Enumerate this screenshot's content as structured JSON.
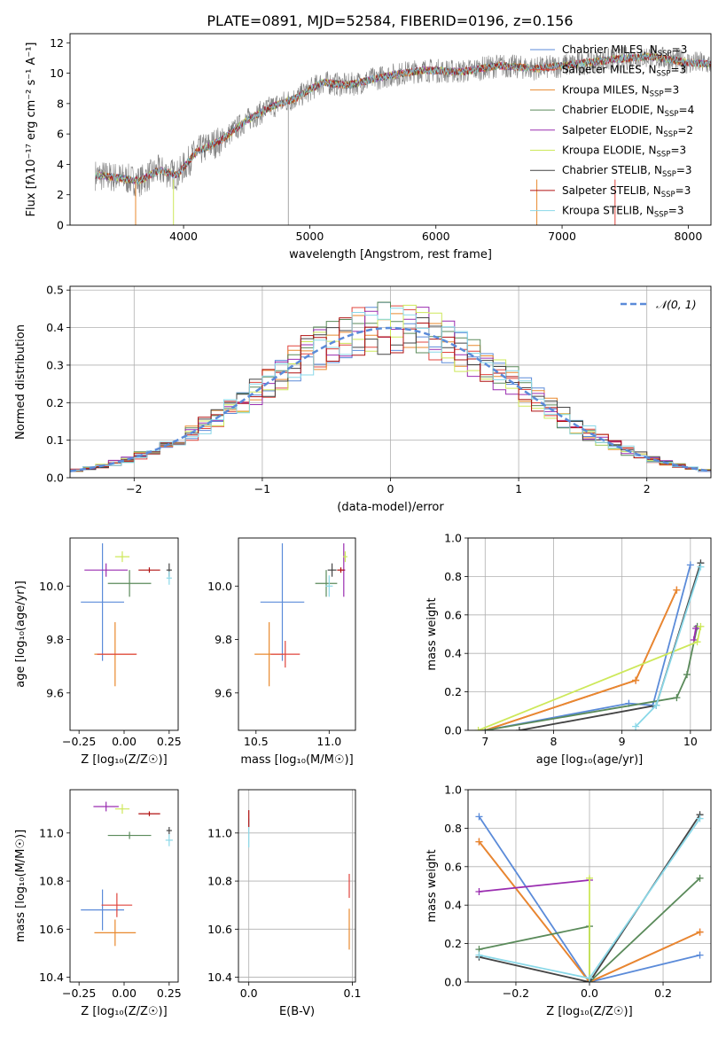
{
  "figure_title": "PLATE=0891, MJD=52584, FIBERID=0196, z=0.156",
  "colors": {
    "chabrier_miles": "#5b8bd9",
    "salpeter_miles": "#e0443c",
    "kroupa_miles": "#e8892e",
    "chabrier_elodie": "#5a8a5a",
    "salpeter_elodie": "#9a2db0",
    "kroupa_elodie": "#cde85a",
    "chabrier_stelib": "#444444",
    "salpeter_stelib": "#b01010",
    "kroupa_stelib": "#8ad8e8",
    "gauss": "#5b8bd9",
    "data": "#808080",
    "grid": "#b0b0b0"
  },
  "legend_spectrum": [
    {
      "label": "Chabrier MILES, N",
      "sub": "SSP",
      "suffix": "=3",
      "color_key": "chabrier_miles"
    },
    {
      "label": "Salpeter MILES, N",
      "sub": "SSP",
      "suffix": "=3",
      "color_key": "salpeter_miles"
    },
    {
      "label": "Kroupa MILES, N",
      "sub": "SSP",
      "suffix": "=3",
      "color_key": "kroupa_miles"
    },
    {
      "label": "Chabrier ELODIE, N",
      "sub": "SSP",
      "suffix": "=4",
      "color_key": "chabrier_elodie"
    },
    {
      "label": "Salpeter ELODIE, N",
      "sub": "SSP",
      "suffix": "=2",
      "color_key": "salpeter_elodie"
    },
    {
      "label": "Kroupa ELODIE, N",
      "sub": "SSP",
      "suffix": "=3",
      "color_key": "kroupa_elodie"
    },
    {
      "label": "Chabrier STELIB, N",
      "sub": "SSP",
      "suffix": "=3",
      "color_key": "chabrier_stelib"
    },
    {
      "label": "Salpeter STELIB, N",
      "sub": "SSP",
      "suffix": "=3",
      "color_key": "salpeter_stelib"
    },
    {
      "label": "Kroupa STELIB, N",
      "sub": "SSP",
      "suffix": "=3",
      "color_key": "kroupa_stelib"
    }
  ],
  "chart_data": [
    {
      "id": "spectrum",
      "type": "line",
      "title": "PLATE=0891, MJD=52584, FIBERID=0196, z=0.156",
      "xlabel": "wavelength [Angstrom, rest frame]",
      "ylabel": "Flux [fλ10⁻¹⁷ erg cm⁻² s⁻¹ A⁻¹]",
      "xlim": [
        3100,
        8180
      ],
      "ylim": [
        0,
        12.6
      ],
      "xticks": [
        4000,
        5000,
        6000,
        7000,
        8000
      ],
      "yticks": [
        0,
        2,
        4,
        6,
        8,
        10,
        12
      ],
      "grid": false,
      "legend": "right",
      "continuum": {
        "x": [
          3300,
          3500,
          3650,
          3800,
          3950,
          4100,
          4300,
          4500,
          4700,
          4900,
          5100,
          5300,
          5600,
          5900,
          6200,
          6500,
          6800,
          7100,
          7400,
          7700,
          8000,
          8180
        ],
        "y": [
          3.3,
          3.1,
          2.9,
          3.6,
          3.3,
          4.8,
          5.6,
          6.9,
          7.8,
          8.4,
          9.4,
          9.2,
          9.8,
          10.2,
          10.1,
          10.5,
          10.3,
          10.6,
          10.9,
          11.1,
          10.7,
          10.6
        ]
      }
    },
    {
      "id": "residuals",
      "type": "step",
      "xlabel": "(data-model)/error",
      "ylabel": "Normed distribution",
      "xlim": [
        -2.5,
        2.5
      ],
      "ylim": [
        0,
        0.51
      ],
      "xticks": [
        -2,
        -1,
        0,
        1,
        2
      ],
      "yticks": [
        0.0,
        0.1,
        0.2,
        0.3,
        0.4,
        0.5
      ],
      "grid": true,
      "legend": "top-right",
      "legend_label": "𝒩(0, 1)",
      "bin_width": 0.1
    },
    {
      "id": "age_vs_Z",
      "type": "errorbar",
      "xlabel": "Z [log₁₀(Z/Z☉)]",
      "ylabel": "age  [log₁₀(age/yr)]",
      "xlim": [
        -0.3,
        0.3
      ],
      "ylim": [
        9.46,
        10.18
      ],
      "xticks": [
        -0.25,
        0.0,
        0.25
      ],
      "yticks": [
        9.6,
        9.8,
        10.0
      ],
      "grid": false,
      "points": [
        {
          "c": "chabrier_miles",
          "x": -0.12,
          "y": 9.94,
          "xe": 0.24,
          "ye": 0.44
        },
        {
          "c": "kroupa_miles",
          "x": -0.05,
          "y": 9.745,
          "xe": 0.23,
          "ye": 0.24
        },
        {
          "c": "salpeter_miles",
          "x": -0.04,
          "y": 9.745,
          "xe": 0.22,
          "ye": 0.0
        },
        {
          "c": "chabrier_elodie",
          "x": 0.03,
          "y": 10.01,
          "xe": 0.24,
          "ye": 0.1
        },
        {
          "c": "salpeter_elodie",
          "x": -0.1,
          "y": 10.06,
          "xe": 0.24,
          "ye": 0.05
        },
        {
          "c": "kroupa_elodie",
          "x": -0.01,
          "y": 10.11,
          "xe": 0.08,
          "ye": 0.04
        },
        {
          "c": "chabrier_stelib",
          "x": 0.25,
          "y": 10.06,
          "xe": 0.03,
          "ye": 0.05
        },
        {
          "c": "salpeter_stelib",
          "x": 0.14,
          "y": 10.06,
          "xe": 0.12,
          "ye": 0.02
        },
        {
          "c": "kroupa_stelib",
          "x": 0.25,
          "y": 10.03,
          "xe": 0.03,
          "ye": 0.05
        }
      ]
    },
    {
      "id": "age_vs_mass",
      "type": "errorbar",
      "xlabel": "mass [log₁₀(M/M☉)]",
      "ylabel": "",
      "xlim": [
        10.38,
        11.18
      ],
      "ylim": [
        9.46,
        10.18
      ],
      "xticks": [
        10.5,
        11.0
      ],
      "yticks": [
        9.6,
        9.8,
        10.0
      ],
      "grid": false,
      "points": [
        {
          "c": "chabrier_miles",
          "x": 10.68,
          "y": 9.94,
          "xe": 0.3,
          "ye": 0.44
        },
        {
          "c": "kroupa_miles",
          "x": 10.59,
          "y": 9.745,
          "xe": 0.2,
          "ye": 0.24
        },
        {
          "c": "salpeter_miles",
          "x": 10.7,
          "y": 9.745,
          "xe": 0.2,
          "ye": 0.1
        },
        {
          "c": "chabrier_elodie",
          "x": 10.98,
          "y": 10.01,
          "xe": 0.15,
          "ye": 0.1
        },
        {
          "c": "salpeter_elodie",
          "x": 11.1,
          "y": 10.06,
          "xe": 0.02,
          "ye": 0.2
        },
        {
          "c": "kroupa_elodie",
          "x": 11.11,
          "y": 10.11,
          "xe": 0.03,
          "ye": 0.04
        },
        {
          "c": "chabrier_stelib",
          "x": 11.02,
          "y": 10.06,
          "xe": 0.06,
          "ye": 0.05
        },
        {
          "c": "salpeter_stelib",
          "x": 11.08,
          "y": 10.06,
          "xe": 0.05,
          "ye": 0.02
        },
        {
          "c": "kroupa_stelib",
          "x": 11.0,
          "y": 10.0,
          "xe": 0.05,
          "ye": 0.08
        }
      ]
    },
    {
      "id": "mass_weight_vs_age",
      "type": "line",
      "xlabel": "age  [log₁₀(age/yr)]",
      "ylabel": "mass weight",
      "xlim": [
        6.75,
        10.3
      ],
      "ylim": [
        0.0,
        1.0
      ],
      "xticks": [
        7,
        8,
        9,
        10
      ],
      "yticks": [
        0.0,
        0.2,
        0.4,
        0.6,
        0.8,
        1.0
      ],
      "grid": true,
      "series": [
        {
          "c": "chabrier_miles",
          "x": [
            7.0,
            9.1,
            9.45,
            10.0
          ],
          "y": [
            0.0,
            0.14,
            0.13,
            0.86
          ]
        },
        {
          "c": "salpeter_miles",
          "x": [
            7.0,
            9.2,
            9.8
          ],
          "y": [
            0.0,
            0.26,
            0.73
          ]
        },
        {
          "c": "kroupa_miles",
          "x": [
            7.0,
            9.2,
            9.8
          ],
          "y": [
            0.0,
            0.26,
            0.73
          ]
        },
        {
          "c": "chabrier_elodie",
          "x": [
            7.0,
            9.8,
            9.95,
            10.1
          ],
          "y": [
            0.0,
            0.17,
            0.29,
            0.54
          ]
        },
        {
          "c": "salpeter_elodie",
          "x": [
            10.05,
            10.08
          ],
          "y": [
            0.47,
            0.53
          ]
        },
        {
          "c": "kroupa_elodie",
          "x": [
            6.9,
            10.1,
            10.15
          ],
          "y": [
            0.0,
            0.46,
            0.54
          ]
        },
        {
          "c": "chabrier_stelib",
          "x": [
            7.5,
            9.5,
            10.15
          ],
          "y": [
            0.0,
            0.13,
            0.87
          ]
        },
        {
          "c": "kroupa_stelib",
          "x": [
            9.2,
            9.5,
            10.15
          ],
          "y": [
            0.02,
            0.13,
            0.85
          ]
        }
      ]
    },
    {
      "id": "mass_vs_Z",
      "type": "errorbar",
      "xlabel": "Z [log₁₀(Z/Z☉)]",
      "ylabel": "mass [log₁₀(M/M☉)]",
      "xlim": [
        -0.3,
        0.3
      ],
      "ylim": [
        10.38,
        11.18
      ],
      "xticks": [
        -0.25,
        0.0,
        0.25
      ],
      "yticks": [
        10.4,
        10.6,
        10.8,
        11.0
      ],
      "grid": false,
      "points": [
        {
          "c": "chabrier_miles",
          "x": -0.12,
          "y": 10.68,
          "xe": 0.24,
          "ye": 0.17
        },
        {
          "c": "kroupa_miles",
          "x": -0.05,
          "y": 10.585,
          "xe": 0.23,
          "ye": 0.11
        },
        {
          "c": "salpeter_miles",
          "x": -0.04,
          "y": 10.7,
          "xe": 0.17,
          "ye": 0.1
        },
        {
          "c": "chabrier_elodie",
          "x": 0.03,
          "y": 10.99,
          "xe": 0.24,
          "ye": 0.03
        },
        {
          "c": "salpeter_elodie",
          "x": -0.1,
          "y": 11.11,
          "xe": 0.14,
          "ye": 0.04
        },
        {
          "c": "kroupa_elodie",
          "x": -0.01,
          "y": 11.1,
          "xe": 0.08,
          "ye": 0.04
        },
        {
          "c": "chabrier_stelib",
          "x": 0.25,
          "y": 11.01,
          "xe": 0.03,
          "ye": 0.03
        },
        {
          "c": "salpeter_stelib",
          "x": 0.14,
          "y": 11.08,
          "xe": 0.12,
          "ye": 0.02
        },
        {
          "c": "kroupa_stelib",
          "x": 0.25,
          "y": 10.97,
          "xe": 0.04,
          "ye": 0.05
        }
      ]
    },
    {
      "id": "mass_vs_ebv",
      "type": "errorbar",
      "xlabel": "E(B-V)",
      "ylabel": "",
      "xlim": [
        -0.01,
        0.103
      ],
      "ylim": [
        10.38,
        11.18
      ],
      "xticks": [
        0.0,
        0.1
      ],
      "yticks": [
        10.4,
        10.6,
        10.8,
        11.0
      ],
      "grid": true,
      "points": [
        {
          "c": "kroupa_stelib",
          "x": 0.0,
          "y": 11.0,
          "xe": 0.0,
          "ye": 0.12
        },
        {
          "c": "salpeter_stelib",
          "x": 0.0,
          "y": 11.06,
          "xe": 0.0,
          "ye": 0.07
        },
        {
          "c": "kroupa_miles",
          "x": 0.097,
          "y": 10.6,
          "xe": 0.0,
          "ye": 0.17
        },
        {
          "c": "salpeter_miles",
          "x": 0.097,
          "y": 10.78,
          "xe": 0.0,
          "ye": 0.1
        }
      ]
    },
    {
      "id": "mass_weight_vs_Z",
      "type": "line",
      "xlabel": "Z [log₁₀(Z/Z☉)]",
      "ylabel": "mass weight",
      "xlim": [
        -0.33,
        0.33
      ],
      "ylim": [
        0.0,
        1.0
      ],
      "xticks": [
        -0.2,
        0.0,
        0.2
      ],
      "yticks": [
        0.0,
        0.2,
        0.4,
        0.6,
        0.8,
        1.0
      ],
      "grid": true,
      "series": [
        {
          "c": "chabrier_miles",
          "x": [
            -0.3,
            0.0,
            0.3
          ],
          "y": [
            0.86,
            0.0,
            0.14
          ]
        },
        {
          "c": "salpeter_miles",
          "x": [
            -0.3,
            0.0,
            0.3
          ],
          "y": [
            0.73,
            0.0,
            0.26
          ]
        },
        {
          "c": "kroupa_miles",
          "x": [
            -0.3,
            0.0,
            0.3
          ],
          "y": [
            0.73,
            0.0,
            0.26
          ]
        },
        {
          "c": "salpeter_elodie",
          "x": [
            -0.3,
            0.0
          ],
          "y": [
            0.47,
            0.53
          ]
        },
        {
          "c": "chabrier_elodie",
          "x": [
            -0.3,
            0.0,
            0.0,
            0.3
          ],
          "y": [
            0.17,
            0.29,
            0.0,
            0.54
          ]
        },
        {
          "c": "kroupa_elodie",
          "x": [
            0.0,
            0.0
          ],
          "y": [
            0.54,
            0.0
          ]
        },
        {
          "c": "chabrier_stelib",
          "x": [
            -0.3,
            0.0,
            0.3
          ],
          "y": [
            0.13,
            0.0,
            0.87
          ]
        },
        {
          "c": "kroupa_stelib",
          "x": [
            -0.3,
            0.0,
            0.3
          ],
          "y": [
            0.14,
            0.02,
            0.85
          ]
        }
      ]
    }
  ]
}
